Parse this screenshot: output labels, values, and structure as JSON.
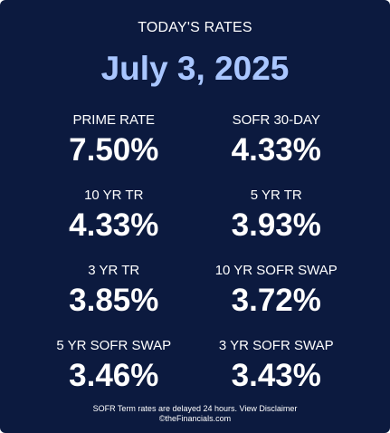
{
  "header": {
    "title": "TODAY'S RATES",
    "date": "July 3, 2025"
  },
  "rates": [
    {
      "label": "PRIME RATE",
      "value": "7.50%"
    },
    {
      "label": "SOFR 30-DAY",
      "value": "4.33%"
    },
    {
      "label": "10 YR TR",
      "value": "4.33%"
    },
    {
      "label": "5 YR TR",
      "value": "3.93%"
    },
    {
      "label": "3 YR TR",
      "value": "3.85%"
    },
    {
      "label": "10 YR SOFR SWAP",
      "value": "3.72%"
    },
    {
      "label": "5 YR SOFR SWAP",
      "value": "3.46%"
    },
    {
      "label": "3 YR SOFR SWAP",
      "value": "3.43%"
    }
  ],
  "footer": {
    "note": "SOFR Term rates are delayed 24 hours.",
    "disclaimer_link": "View Disclaimer",
    "credit": "©theFinancials.com"
  },
  "colors": {
    "background": "#0c1a3f",
    "date_accent": "#a9c6ff",
    "text": "#ffffff"
  }
}
